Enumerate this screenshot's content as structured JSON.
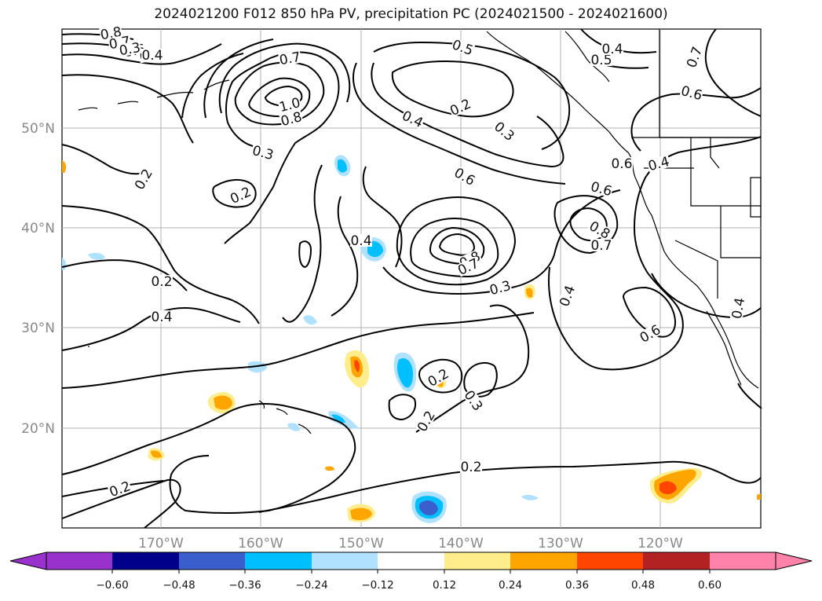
{
  "title": "2024021200 F012 850 hPa PV, precipitation PC (2024021500 - 2024021600)",
  "map": {
    "lon_labels": [
      "170°W",
      "160°W",
      "150°W",
      "140°W",
      "130°W",
      "120°W"
    ],
    "lat_labels": [
      "50°N",
      "40°N",
      "30°N",
      "20°N"
    ],
    "lon_range": [
      -180,
      -110
    ],
    "lat_range": [
      10,
      60
    ],
    "grid": true,
    "contour_labels": [
      "0.8",
      "0.7",
      "0.6",
      "0.5",
      "0.4",
      "0.3",
      "0.7",
      "1.0",
      "0.8",
      "0.3",
      "0.2",
      "0.2",
      "0.5",
      "0.2",
      "0.4",
      "0.3",
      "0.6",
      "0.4",
      "0.8",
      "0.7",
      "0.6",
      "0.6",
      "0.4",
      "0.8",
      "0.7",
      "0.4",
      "0.5",
      "0.7",
      "0.6",
      "0.2",
      "0.4",
      "0.3",
      "0.2",
      "0.2",
      "0.3",
      "0.2",
      "0.2",
      "0.4",
      "0.6",
      "0.4"
    ]
  },
  "colorbar": {
    "ticks": [
      "-0.60",
      "-0.48",
      "-0.36",
      "-0.24",
      "-0.12",
      "0.12",
      "0.24",
      "0.36",
      "0.48",
      "0.60"
    ],
    "colors": [
      "#9932cc",
      "#00008b",
      "#3a5fcd",
      "#00bfff",
      "#b0e2ff",
      "#ffffff",
      "#ffec8b",
      "#ffa500",
      "#ff4500",
      "#b22222",
      "#ff82ab"
    ]
  }
}
